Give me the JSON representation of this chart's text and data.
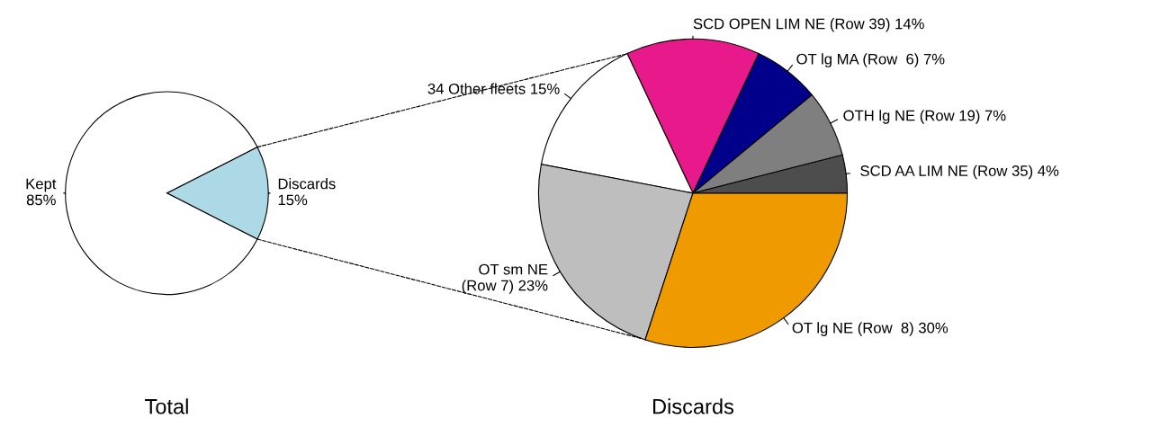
{
  "chart_data": [
    {
      "type": "pie",
      "title": "Total",
      "categories": [
        "Discards\n15%",
        "Kept\n85%"
      ],
      "values": [
        15,
        85
      ],
      "colors": [
        "#add8e6",
        "#ffffff"
      ]
    },
    {
      "type": "pie",
      "title": "Discards",
      "categories": [
        "SCD AA LIM NE (Row 35) 4%",
        "OTH lg NE (Row 19) 7%",
        "OT lg MA (Row  6) 7%",
        "SCD OPEN LIM NE (Row 39) 14%",
        "34 Other fleets 15%",
        "OT sm NE\n(Row 7) 23%",
        "OT lg NE (Row  8) 30%"
      ],
      "values": [
        4,
        7,
        7,
        14,
        15,
        23,
        30
      ],
      "colors": [
        "#4d4d4d",
        "#7f7f7f",
        "#00008b",
        "#e8198b",
        "#ffffff",
        "#bebebe",
        "#ef9b00"
      ]
    }
  ]
}
